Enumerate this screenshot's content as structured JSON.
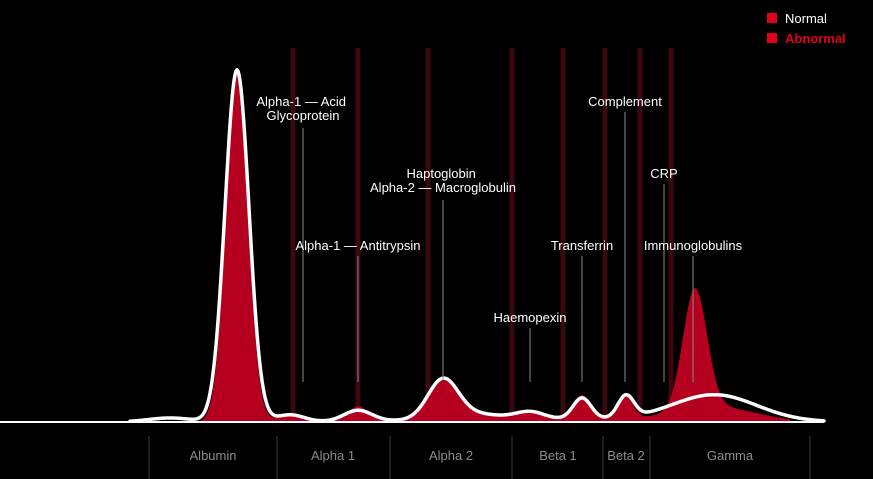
{
  "legend": {
    "normal_label": "Normal",
    "abnormal_label": "Abnormal"
  },
  "colors": {
    "background": "#000000",
    "abnormal": "#b4001e",
    "abnormal_accent": "#e3001b",
    "normal_curve": "#ffffff",
    "band_line": "#3a0810",
    "leader_line": "#8a8a8a",
    "label_text": "#ffffff",
    "region_text": "#8c8c8c"
  },
  "regions": [
    {
      "name": "Albumin"
    },
    {
      "name": "Alpha 1"
    },
    {
      "name": "Alpha 2"
    },
    {
      "name": "Beta 1"
    },
    {
      "name": "Beta 2"
    },
    {
      "name": "Gamma"
    }
  ],
  "proteins": [
    {
      "lines": [
        "Alpha-1 — Acid",
        "Glycoprotein"
      ]
    },
    {
      "lines": [
        "Alpha-1 — Antitrypsin"
      ]
    },
    {
      "lines": [
        "Haptoglobin",
        "Alpha-2 — Macroglobulin"
      ]
    },
    {
      "lines": [
        "Haemopexin"
      ]
    },
    {
      "lines": [
        "Transferrin"
      ]
    },
    {
      "lines": [
        "Complement"
      ]
    },
    {
      "lines": [
        "CRP"
      ]
    },
    {
      "lines": [
        "Immunoglobulins"
      ]
    }
  ]
}
